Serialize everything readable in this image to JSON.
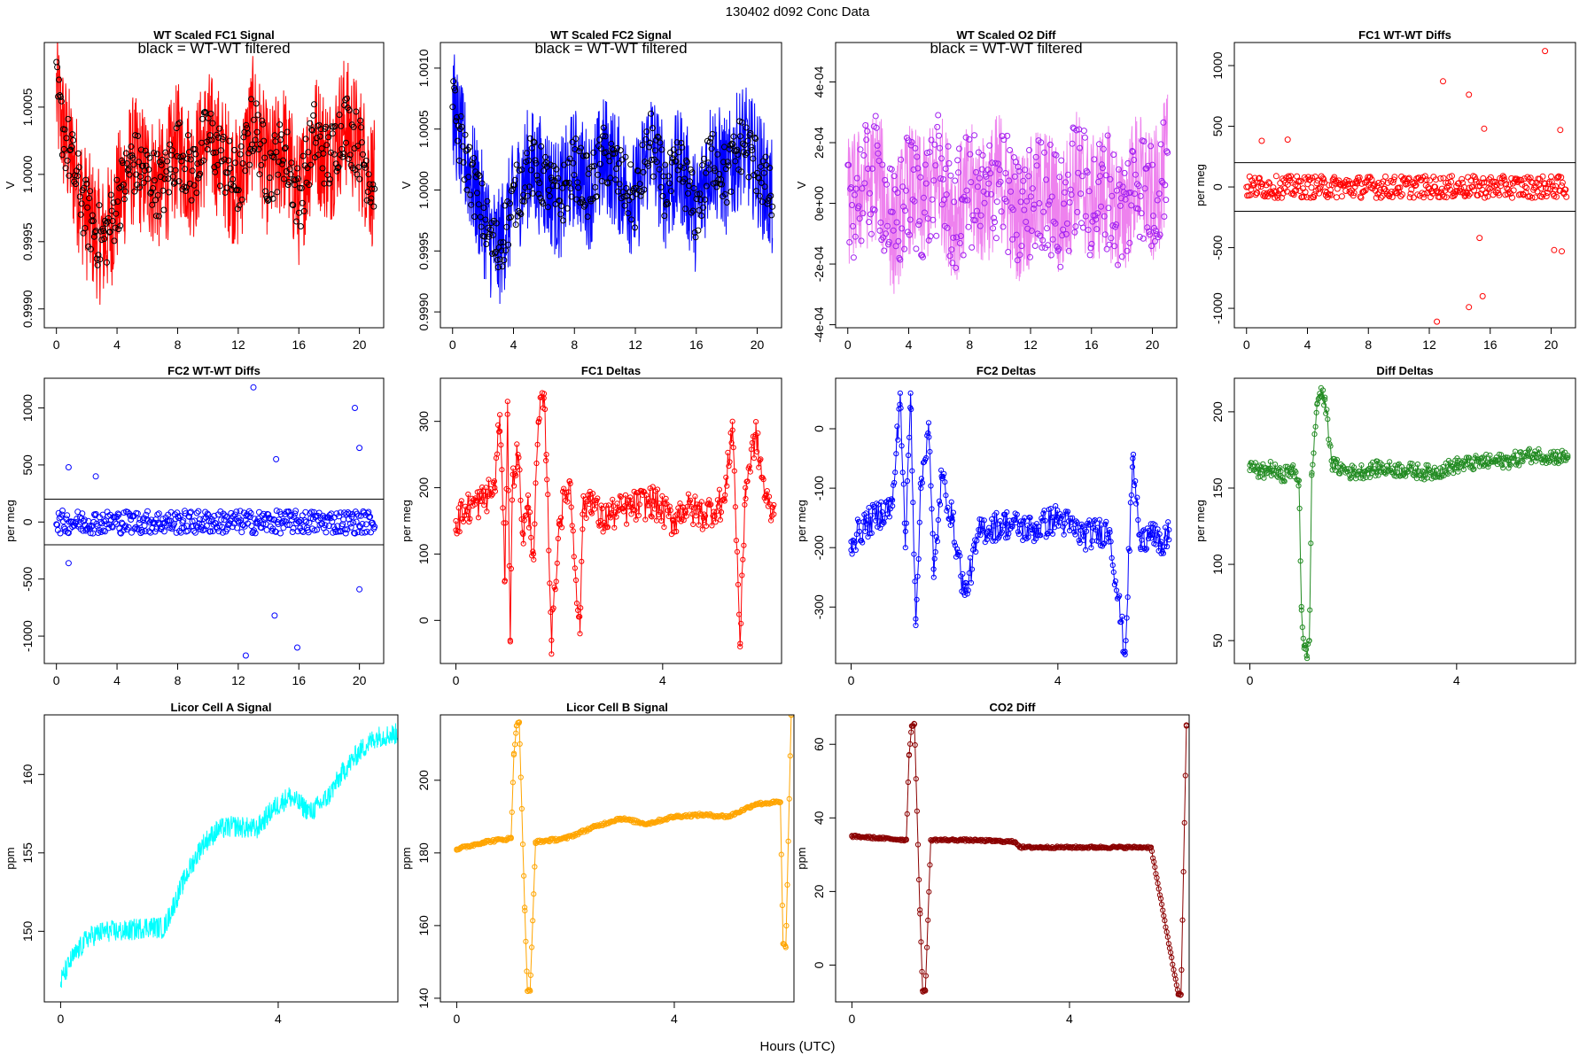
{
  "figure": {
    "title": "130402   d092   Conc Data",
    "xlabel": "Hours (UTC)"
  },
  "chart_data": [
    {
      "id": "p1",
      "type": "line",
      "title": "WT Scaled FC1 Signal",
      "subtitle": "black = WT-WT filtered",
      "ylabel": "V",
      "xlim": [
        -0.8,
        21.6
      ],
      "ylim": [
        0.99886,
        1.00098
      ],
      "xticks": [
        "0",
        "4",
        "8",
        "12",
        "16",
        "20"
      ],
      "yticks": [
        "0.9990",
        "0.9995",
        "1.0000",
        "1.0005"
      ],
      "series": [
        {
          "name": "signal",
          "color": "#ff0000",
          "style": "noise",
          "x": [
            0,
            0.5,
            1,
            1.5,
            2,
            2.5,
            3,
            3.5,
            4,
            5,
            6,
            7,
            8,
            9,
            10,
            11,
            12,
            13,
            14,
            15,
            16,
            17,
            18,
            19,
            20,
            21
          ],
          "y": [
            1.0006,
            1.0003,
            1.0001,
            0.9999,
            0.9997,
            0.9996,
            0.9995,
            0.9996,
            0.9998,
            1.0001,
            1.0,
            0.9999,
            1.0002,
            1.0,
            1.0003,
            1.0001,
            0.9999,
            1.0004,
            1.0,
            1.0002,
            0.9998,
            1.0003,
            1.0001,
            1.0004,
            1.0002,
            0.9999
          ],
          "amplitude": 0.0005
        },
        {
          "name": "WT-WT filtered",
          "color": "#000000",
          "style": "circles",
          "x": [
            0,
            0.5,
            1,
            1.5,
            2,
            2.5,
            3,
            3.5,
            4,
            5,
            6,
            7,
            8,
            9,
            10,
            11,
            12,
            13,
            14,
            15,
            16,
            17,
            18,
            19,
            20,
            21
          ],
          "y": [
            1.0006,
            1.0003,
            1.0001,
            0.9999,
            0.9997,
            0.9996,
            0.9995,
            0.9996,
            0.9998,
            1.0001,
            1.0,
            0.9999,
            1.0002,
            1.0,
            1.0003,
            1.0001,
            0.9999,
            1.0004,
            1.0,
            1.0002,
            0.9998,
            1.0003,
            1.0001,
            1.0004,
            1.0002,
            0.9999
          ],
          "amplitude": 0.00025
        }
      ]
    },
    {
      "id": "p2",
      "type": "line",
      "title": "WT Scaled FC2 Signal",
      "subtitle": "black = WT-WT filtered",
      "ylabel": "V",
      "xlim": [
        -0.8,
        21.6
      ],
      "ylim": [
        0.99887,
        1.00121
      ],
      "xticks": [
        "0",
        "4",
        "8",
        "12",
        "16",
        "20"
      ],
      "yticks": [
        "0.9990",
        "0.9995",
        "1.0000",
        "1.0005",
        "1.0010"
      ],
      "series": [
        {
          "name": "signal",
          "color": "#0000ff",
          "style": "noise",
          "x": [
            0,
            0.5,
            1,
            1.5,
            2,
            2.5,
            3,
            3.5,
            4,
            5,
            6,
            7,
            8,
            9,
            10,
            11,
            12,
            13,
            14,
            15,
            16,
            17,
            18,
            19,
            20,
            21
          ],
          "y": [
            1.0007,
            1.0004,
            1.0002,
            1.0,
            0.9998,
            0.9996,
            0.9995,
            0.9997,
            0.9999,
            1.0002,
            1.0001,
            0.9999,
            1.0002,
            1.0,
            1.0003,
            1.0001,
            0.9999,
            1.0004,
            1.0,
            1.0002,
            0.9998,
            1.0003,
            1.0001,
            1.0004,
            1.0002,
            0.9999
          ],
          "amplitude": 0.0005
        },
        {
          "name": "WT-WT filtered",
          "color": "#000000",
          "style": "circles",
          "x": [
            0,
            0.5,
            1,
            1.5,
            2,
            2.5,
            3,
            3.5,
            4,
            5,
            6,
            7,
            8,
            9,
            10,
            11,
            12,
            13,
            14,
            15,
            16,
            17,
            18,
            19,
            20,
            21
          ],
          "y": [
            1.0007,
            1.0004,
            1.0002,
            1.0,
            0.9998,
            0.9996,
            0.9995,
            0.9997,
            0.9999,
            1.0002,
            1.0001,
            0.9999,
            1.0002,
            1.0,
            1.0003,
            1.0001,
            0.9999,
            1.0004,
            1.0,
            1.0002,
            0.9998,
            1.0003,
            1.0001,
            1.0004,
            1.0002,
            0.9999
          ],
          "amplitude": 0.00025
        }
      ]
    },
    {
      "id": "p3",
      "type": "line",
      "title": "WT Scaled O2 Diff",
      "subtitle": "black = WT-WT filtered",
      "ylabel": "V",
      "xlim": [
        -0.8,
        21.6
      ],
      "ylim": [
        -0.00041,
        0.00053
      ],
      "xticks": [
        "0",
        "4",
        "8",
        "12",
        "16",
        "20"
      ],
      "yticks": [
        "-4e-04",
        "-2e-04",
        "0e+00",
        "2e-04",
        "4e-04"
      ],
      "series": [
        {
          "name": "signal",
          "color": "#ee82ee",
          "style": "noise",
          "x": [
            0,
            1,
            2,
            3,
            4,
            5,
            6,
            7,
            8,
            9,
            10,
            11,
            12,
            13,
            14,
            15,
            16,
            17,
            18,
            19,
            20,
            21
          ],
          "y": [
            0,
            5e-05,
            0.0001,
            -0.0001,
            5e-05,
            0,
            0.0001,
            -5e-05,
            5e-05,
            0,
            0.0001,
            -5e-05,
            0,
            5e-05,
            -5e-05,
            0.0001,
            0,
            5e-05,
            -5e-05,
            0.0001,
            0,
            0.00015
          ],
          "amplitude": 0.00022
        },
        {
          "name": "WT-WT filtered",
          "color": "#a020f0",
          "style": "circles",
          "x": [
            0,
            1,
            2,
            3,
            4,
            5,
            6,
            7,
            8,
            9,
            10,
            11,
            12,
            13,
            14,
            15,
            16,
            17,
            18,
            19,
            20,
            21
          ],
          "y": [
            0,
            5e-05,
            0.0001,
            -0.0001,
            5e-05,
            0,
            0.0001,
            -5e-05,
            5e-05,
            0,
            0.0001,
            -5e-05,
            0,
            5e-05,
            -5e-05,
            0.0001,
            0,
            5e-05,
            -5e-05,
            0.0001,
            0,
            0.00015
          ],
          "amplitude": 0.0002
        }
      ]
    },
    {
      "id": "p4",
      "type": "scatter",
      "title": "FC1 WT-WT Diffs",
      "ylabel": "per meg",
      "xlim": [
        -0.8,
        21.6
      ],
      "ylim": [
        -1160,
        1190
      ],
      "xticks": [
        "0",
        "4",
        "8",
        "12",
        "16",
        "20"
      ],
      "yticks": [
        "-1000",
        "-500",
        "0",
        "500",
        "1000"
      ],
      "hlines": [
        200,
        -200
      ],
      "series": [
        {
          "name": "diffs",
          "color": "#ff0000",
          "style": "circles",
          "x": [
            0,
            21
          ],
          "y": [
            0,
            0
          ],
          "amplitude": 90,
          "outliers": [
            [
              19.6,
              1120
            ],
            [
              12.9,
              870
            ],
            [
              14.6,
              760
            ],
            [
              15.6,
              480
            ],
            [
              20.6,
              470
            ],
            [
              1,
              380
            ],
            [
              2.7,
              390
            ],
            [
              14.6,
              -990
            ],
            [
              15.5,
              -900
            ],
            [
              12.5,
              -1110
            ],
            [
              20.7,
              -530
            ],
            [
              20.2,
              -520
            ],
            [
              15.3,
              -420
            ]
          ]
        }
      ]
    },
    {
      "id": "p5",
      "type": "scatter",
      "title": "FC2 WT-WT Diffs",
      "ylabel": "per meg",
      "xlim": [
        -0.8,
        21.6
      ],
      "ylim": [
        -1240,
        1260
      ],
      "xticks": [
        "0",
        "4",
        "8",
        "12",
        "16",
        "20"
      ],
      "yticks": [
        "-1000",
        "-500",
        "0",
        "500",
        "1000"
      ],
      "hlines": [
        200,
        -200
      ],
      "series": [
        {
          "name": "diffs",
          "color": "#0000ff",
          "style": "circles",
          "x": [
            0,
            21
          ],
          "y": [
            0,
            0
          ],
          "amplitude": 100,
          "outliers": [
            [
              13,
              1180
            ],
            [
              19.7,
              1000
            ],
            [
              20,
              650
            ],
            [
              14.5,
              550
            ],
            [
              0.8,
              480
            ],
            [
              2.6,
              400
            ],
            [
              12.5,
              -1170
            ],
            [
              15.9,
              -1100
            ],
            [
              14.4,
              -820
            ],
            [
              20,
              -590
            ],
            [
              0.8,
              -360
            ]
          ]
        }
      ]
    },
    {
      "id": "p6",
      "type": "line",
      "title": "FC1 Deltas",
      "ylabel": "per meg",
      "xlim": [
        -0.3,
        6.3
      ],
      "ylim": [
        -65,
        365
      ],
      "xticks": [
        "0",
        "4"
      ],
      "yticks": [
        "0",
        "100",
        "200",
        "300"
      ],
      "series": [
        {
          "name": "FC1 deltas",
          "color": "#ff0000",
          "style": "linepoints",
          "x": [
            0,
            0.25,
            0.5,
            0.75,
            0.85,
            0.95,
            1.0,
            1.05,
            1.1,
            1.2,
            1.3,
            1.4,
            1.5,
            1.6,
            1.7,
            1.75,
            1.85,
            2.0,
            2.2,
            2.4,
            2.45,
            2.6,
            2.8,
            3.0,
            3.4,
            3.8,
            4.2,
            4.4,
            4.8,
            5.2,
            5.35,
            5.5,
            5.6,
            5.8,
            6.0,
            6.15
          ],
          "y": [
            150,
            170,
            180,
            200,
            310,
            60,
            330,
            -30,
            220,
            250,
            130,
            170,
            100,
            300,
            335,
            250,
            -30,
            150,
            210,
            -20,
            160,
            190,
            150,
            160,
            170,
            180,
            150,
            170,
            160,
            180,
            300,
            -35,
            200,
            280,
            180,
            160
          ],
          "amplitude": 25
        }
      ]
    },
    {
      "id": "p7",
      "type": "line",
      "title": "FC2 Deltas",
      "ylabel": "per meg",
      "xlim": [
        -0.3,
        6.3
      ],
      "ylim": [
        -395,
        85
      ],
      "xticks": [
        "0",
        "4"
      ],
      "yticks": [
        "-300",
        "-200",
        "-100",
        "0"
      ],
      "series": [
        {
          "name": "FC2 deltas",
          "color": "#0000ff",
          "style": "linepoints",
          "x": [
            0,
            0.3,
            0.6,
            0.8,
            0.95,
            1.05,
            1.15,
            1.25,
            1.35,
            1.5,
            1.6,
            1.75,
            1.95,
            2.2,
            2.5,
            3.0,
            3.5,
            4.0,
            4.5,
            5.0,
            5.3,
            5.45,
            5.6,
            5.8,
            6.0,
            6.15
          ],
          "y": [
            -190,
            -160,
            -140,
            -130,
            60,
            -200,
            60,
            -320,
            -100,
            10,
            -250,
            -80,
            -150,
            -280,
            -170,
            -160,
            -170,
            -150,
            -180,
            -170,
            -380,
            -50,
            -200,
            -160,
            -210,
            -170
          ],
          "amplitude": 25
        }
      ]
    },
    {
      "id": "p8",
      "type": "line",
      "title": "Diff Deltas",
      "ylabel": "per meg",
      "xlim": [
        -0.3,
        6.3
      ],
      "ylim": [
        35,
        222
      ],
      "xticks": [
        "0",
        "4"
      ],
      "yticks": [
        "50",
        "100",
        "150",
        "200"
      ],
      "series": [
        {
          "name": "Diff deltas",
          "color": "#228b22",
          "style": "linepoints",
          "x": [
            0,
            0.2,
            0.4,
            0.6,
            0.8,
            0.95,
            1.0,
            1.05,
            1.1,
            1.15,
            1.2,
            1.3,
            1.35,
            1.45,
            1.6,
            2,
            2.5,
            3,
            3.5,
            4,
            4.5,
            5,
            5.5,
            6.15
          ],
          "y": [
            165,
            160,
            163,
            158,
            162,
            155,
            70,
            45,
            40,
            50,
            160,
            205,
            212,
            208,
            165,
            160,
            163,
            162,
            160,
            165,
            167,
            168,
            172,
            170
          ],
          "amplitude": 5
        }
      ]
    },
    {
      "id": "p9",
      "type": "line",
      "title": "Licor Cell A Signal",
      "ylabel": "ppm",
      "xlim": [
        -0.3,
        6.2
      ],
      "ylim": [
        145.5,
        163.8
      ],
      "xticks": [
        "0",
        "4"
      ],
      "yticks": [
        "150",
        "155",
        "160"
      ],
      "series": [
        {
          "name": "Cell A",
          "color": "#00ffff",
          "style": "noise",
          "x": [
            0,
            0.2,
            0.5,
            0.8,
            1.2,
            1.6,
            1.9,
            2.3,
            2.6,
            2.9,
            3.2,
            3.6,
            3.9,
            4.2,
            4.6,
            4.9,
            5.2,
            5.5,
            5.8,
            6.2
          ],
          "y": [
            146.8,
            148.2,
            149.6,
            150,
            150,
            150.3,
            150.2,
            153.5,
            155.5,
            156.5,
            156.7,
            156.5,
            157.8,
            158.6,
            157.6,
            158.5,
            160.2,
            161.5,
            162.4,
            162.6
          ],
          "amplitude": 0.7
        }
      ]
    },
    {
      "id": "p10",
      "type": "line",
      "title": "Licor Cell B Signal",
      "ylabel": "ppm",
      "xlim": [
        -0.3,
        6.2
      ],
      "ylim": [
        139,
        218
      ],
      "xticks": [
        "0",
        "4"
      ],
      "yticks": [
        "140",
        "160",
        "180",
        "200"
      ],
      "series": [
        {
          "name": "Cell B",
          "color": "#ffa500",
          "style": "linepoints",
          "x": [
            0,
            0.5,
            1.0,
            1.05,
            1.1,
            1.15,
            1.25,
            1.3,
            1.35,
            1.45,
            2.0,
            2.5,
            3.0,
            3.5,
            4.0,
            4.5,
            5.0,
            5.5,
            5.95,
            6.0,
            6.05,
            6.15
          ],
          "y": [
            181,
            183,
            184,
            207,
            215,
            216,
            165,
            142,
            142,
            183,
            184,
            187,
            189.5,
            188,
            190,
            190.5,
            190,
            193.5,
            194,
            155,
            154,
            218
          ],
          "amplitude": 0.4
        }
      ]
    },
    {
      "id": "p11",
      "type": "line",
      "title": "CO2 Diff",
      "ylabel": "ppm",
      "xlim": [
        -0.3,
        6.2
      ],
      "ylim": [
        -10,
        68
      ],
      "xticks": [
        "0",
        "4"
      ],
      "yticks": [
        "0",
        "20",
        "40",
        "60"
      ],
      "series": [
        {
          "name": "CO2 diff",
          "color": "#8b0000",
          "style": "linepoints",
          "x": [
            0,
            0.5,
            1.0,
            1.05,
            1.1,
            1.15,
            1.25,
            1.3,
            1.35,
            1.45,
            2.0,
            2.5,
            3.0,
            3.1,
            3.5,
            4.0,
            4.5,
            5.0,
            5.5,
            6.0,
            6.05,
            6.15
          ],
          "y": [
            35,
            34.5,
            34,
            57,
            65,
            65.5,
            15,
            -7,
            -7,
            34,
            34,
            33.8,
            33.5,
            32,
            32,
            32,
            32,
            32,
            32,
            -8,
            -8,
            65
          ],
          "amplitude": 0.3
        }
      ]
    }
  ]
}
